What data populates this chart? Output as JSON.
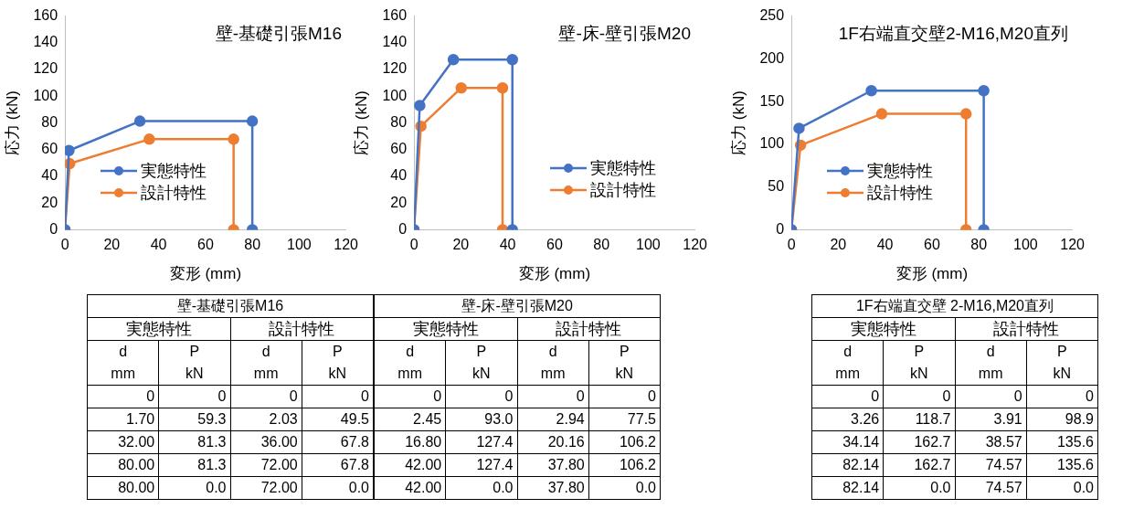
{
  "chart_data": [
    {
      "type": "line",
      "title": "壁-基礎引張M16",
      "xlabel": "変形 (mm)",
      "ylabel": "応力 (kN)",
      "xlim": [
        0,
        120
      ],
      "xticks": [
        0,
        20,
        40,
        60,
        80,
        100,
        120
      ],
      "ylim": [
        0,
        160
      ],
      "yticks": [
        0,
        20,
        40,
        60,
        80,
        100,
        120,
        140,
        160
      ],
      "marker": "circle",
      "legend": "left",
      "series": [
        {
          "name": "実態特性",
          "color": "#4472c4",
          "x": [
            0,
            1.7,
            32,
            80,
            80
          ],
          "values": [
            0,
            59.3,
            81.3,
            81.3,
            0
          ]
        },
        {
          "name": "設計特性",
          "color": "#ed7d31",
          "x": [
            0,
            2.03,
            36,
            72,
            72
          ],
          "values": [
            0,
            49.5,
            67.8,
            67.8,
            0
          ]
        }
      ]
    },
    {
      "type": "line",
      "title": "壁-床-壁引張M20",
      "xlabel": "変形 (mm)",
      "ylabel": "応力 (kN)",
      "xlim": [
        0,
        120
      ],
      "xticks": [
        0,
        20,
        40,
        60,
        80,
        100,
        120
      ],
      "ylim": [
        0,
        160
      ],
      "yticks": [
        0,
        20,
        40,
        60,
        80,
        100,
        120,
        140,
        160
      ],
      "marker": "circle",
      "legend": "bottom right",
      "series": [
        {
          "name": "実態特性",
          "color": "#4472c4",
          "x": [
            0,
            2.45,
            16.8,
            42,
            42
          ],
          "values": [
            0,
            93.0,
            127.4,
            127.4,
            0
          ]
        },
        {
          "name": "設計特性",
          "color": "#ed7d31",
          "x": [
            0,
            2.94,
            20.16,
            37.8,
            37.8
          ],
          "values": [
            0,
            77.5,
            106.2,
            106.2,
            0
          ]
        }
      ]
    },
    {
      "type": "line",
      "title": "1F右端直交壁2-M16,M20直列",
      "xlabel": "変形 (mm)",
      "ylabel": "応力 (kN)",
      "xlim": [
        0,
        120
      ],
      "xticks": [
        0,
        20,
        40,
        60,
        80,
        100,
        120
      ],
      "ylim": [
        0,
        250
      ],
      "yticks": [
        0,
        50,
        100,
        150,
        200,
        250
      ],
      "marker": "circle",
      "legend": "left",
      "series": [
        {
          "name": "実態特性",
          "color": "#4472c4",
          "x": [
            0,
            3.26,
            34.14,
            82.14,
            82.14
          ],
          "values": [
            0,
            118.7,
            162.7,
            162.7,
            0
          ]
        },
        {
          "name": "設計特性",
          "color": "#ed7d31",
          "x": [
            0,
            3.91,
            38.57,
            74.57,
            74.57
          ],
          "values": [
            0,
            98.9,
            135.6,
            135.6,
            0
          ]
        }
      ]
    },
    {
      "type": "other",
      "title": "壁-基礎引張M16",
      "annotations": [
        "実態特性",
        "設計特性"
      ],
      "categories": [
        "d mm",
        "P kN",
        "d mm",
        "P kN"
      ],
      "cell_labels": [
        [
          "0",
          "0",
          "0",
          "0"
        ],
        [
          "1.70",
          "59.3",
          "2.03",
          "49.5"
        ],
        [
          "32.00",
          "81.3",
          "36.00",
          "67.8"
        ],
        [
          "80.00",
          "81.3",
          "72.00",
          "67.8"
        ],
        [
          "80.00",
          "0.0",
          "72.00",
          "0.0"
        ]
      ]
    },
    {
      "type": "other",
      "title": "壁-床-壁引張M20",
      "annotations": [
        "実態特性",
        "設計特性"
      ],
      "categories": [
        "d mm",
        "P kN",
        "d mm",
        "P kN"
      ],
      "cell_labels": [
        [
          "0",
          "0",
          "0",
          "0"
        ],
        [
          "2.45",
          "93.0",
          "2.94",
          "77.5"
        ],
        [
          "16.80",
          "127.4",
          "20.16",
          "106.2"
        ],
        [
          "42.00",
          "127.4",
          "37.80",
          "106.2"
        ],
        [
          "42.00",
          "0.0",
          "37.80",
          "0.0"
        ]
      ]
    },
    {
      "type": "other",
      "title": "1F右端直交壁 2-M16,M20直列",
      "annotations": [
        "実態特性",
        "設計特性"
      ],
      "categories": [
        "d mm",
        "P kN",
        "d mm",
        "P kN"
      ],
      "cell_labels": [
        [
          "0",
          "0",
          "0",
          "0"
        ],
        [
          "3.26",
          "118.7",
          "3.91",
          "98.9"
        ],
        [
          "34.14",
          "162.7",
          "38.57",
          "135.6"
        ],
        [
          "82.14",
          "162.7",
          "74.57",
          "135.6"
        ],
        [
          "82.14",
          "0.0",
          "74.57",
          "0.0"
        ]
      ]
    }
  ]
}
